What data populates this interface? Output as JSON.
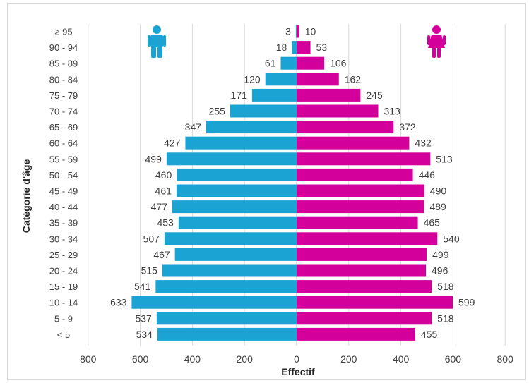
{
  "chart_data": {
    "type": "bar",
    "orientation": "horizontal",
    "layout": "population-pyramid",
    "categories": [
      "< 5",
      "5 - 9",
      "10 - 14",
      "15 - 19",
      "20 - 24",
      "25 - 29",
      "30 - 34",
      "35 - 39",
      "40 - 44",
      "45 - 49",
      "50 - 54",
      "55 - 59",
      "60 - 64",
      "65 - 69",
      "70 - 74",
      "75 - 79",
      "80 - 84",
      "85 - 89",
      "90 - 94",
      "≥ 95"
    ],
    "series": [
      {
        "color": "#1aa3d3",
        "side": "left",
        "icon": "male-icon",
        "values": [
          534,
          537,
          633,
          541,
          515,
          467,
          507,
          453,
          477,
          461,
          460,
          499,
          427,
          347,
          255,
          171,
          120,
          61,
          18,
          3
        ]
      },
      {
        "color": "#d4009b",
        "side": "right",
        "icon": "female-icon",
        "values": [
          455,
          518,
          599,
          518,
          496,
          499,
          540,
          465,
          489,
          490,
          446,
          513,
          432,
          372,
          313,
          245,
          162,
          106,
          53,
          10
        ]
      }
    ],
    "xlabel": "Effectif",
    "ylabel": "Catégorie d'âge",
    "xticks": [
      "800",
      "600",
      "400",
      "200",
      "0",
      "200",
      "400",
      "600",
      "800"
    ],
    "xlim": [
      -800,
      800
    ],
    "grid": "vertical",
    "legend": "icons at top"
  }
}
